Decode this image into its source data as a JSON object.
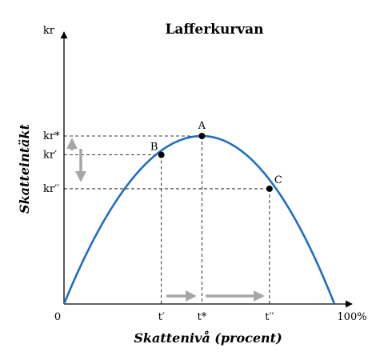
{
  "chart_data": {
    "type": "line",
    "title": "Lafferkurvan",
    "xlabel": "Skattenivå (procent)",
    "ylabel": "Skatteintäkt",
    "x_origin_label": "0",
    "x_end_label": "100%",
    "y_axis_unit_label": "kr",
    "xlim": [
      0,
      100
    ],
    "ylim": [
      0,
      100
    ],
    "grid": false,
    "series": [
      {
        "x": [
          0,
          100
        ],
        "peak_x": 51,
        "peak_y": 100,
        "color": "#1f6fbf"
      }
    ],
    "points": [
      {
        "label": "A",
        "x": 51,
        "y": 100,
        "xtick": "t*",
        "ytick": "kr*"
      },
      {
        "label": "B",
        "x": 36,
        "y": 88.8,
        "xtick": "t′",
        "ytick": "kr′"
      },
      {
        "label": "C",
        "x": 76,
        "y": 68.6,
        "xtick": "t′′",
        "ytick": "kr′′"
      }
    ],
    "annotations": {
      "arrow_color": "#a6a6a6",
      "x_arrows": "right (t′ → t* → t′′)",
      "y_arrows": "up and down (near kr* / kr′′)"
    }
  }
}
